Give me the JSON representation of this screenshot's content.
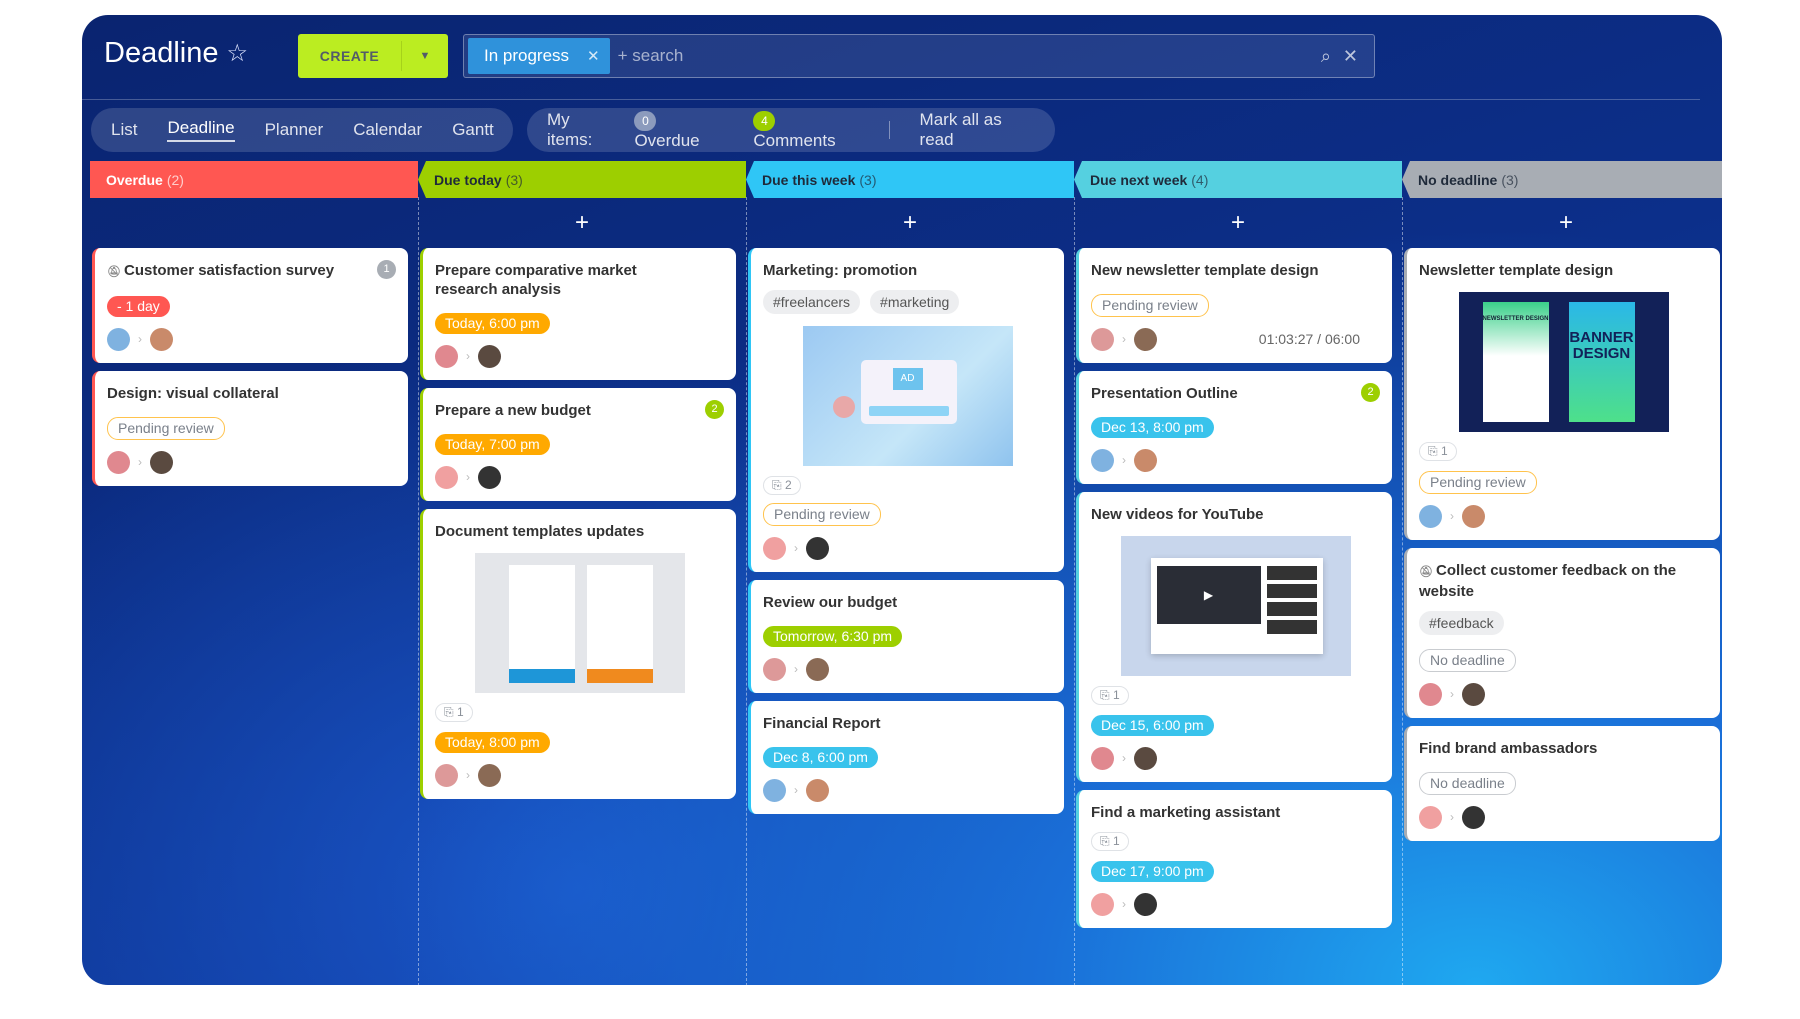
{
  "header": {
    "title": "Deadline",
    "create_label": "CREATE",
    "filter_chip": "In progress",
    "search_placeholder": "+ search"
  },
  "view_tabs": [
    "List",
    "Deadline",
    "Planner",
    "Calendar",
    "Gantt"
  ],
  "active_tab": "Deadline",
  "my_items": {
    "label": "My items:",
    "overdue_count": "0",
    "overdue_label": "Overdue",
    "comments_count": "4",
    "comments_label": "Comments",
    "mark_read": "Mark all as read"
  },
  "colors": {
    "overdue": "#ff5752",
    "today": "#9dcf00",
    "week": "#2fc6f6",
    "next_week": "#55d0e0",
    "none": "#a8adb4",
    "orange": "#ffa900",
    "green": "#9dcf00",
    "blue": "#2fc6f6"
  },
  "columns": [
    {
      "title": "Overdue",
      "count": "(2)",
      "color": "#ff5752",
      "cards": [
        {
          "title": "Customer satisfaction survey",
          "muted": true,
          "counter": "1",
          "counter_color": "#a8adb4",
          "badge": {
            "text": "- 1 day",
            "kind": "red"
          }
        },
        {
          "title": "Design: visual collateral",
          "badge": {
            "text": "Pending review",
            "kind": "pending"
          }
        }
      ]
    },
    {
      "title": "Due today",
      "count": "(3)",
      "color": "#9dcf00",
      "cards": [
        {
          "title": "Prepare comparative market research analysis",
          "badge": {
            "text": "Today, 6:00 pm",
            "kind": "orange"
          }
        },
        {
          "title": "Prepare a new budget",
          "counter": "2",
          "counter_color": "#9dcf00",
          "badge": {
            "text": "Today, 7:00 pm",
            "kind": "orange"
          }
        },
        {
          "title": "Document templates updates",
          "image": "documents",
          "attachments": "1",
          "badge": {
            "text": "Today, 8:00 pm",
            "kind": "orange"
          }
        }
      ]
    },
    {
      "title": "Due this week",
      "count": "(3)",
      "color": "#2fc6f6",
      "cards": [
        {
          "title": "Marketing: promotion",
          "tags": [
            "#freelancers",
            "#marketing"
          ],
          "image": "ad",
          "attachments": "2",
          "badge": {
            "text": "Pending review",
            "kind": "pending"
          }
        },
        {
          "title": "Review our budget",
          "badge": {
            "text": "Tomorrow, 6:30 pm",
            "kind": "green"
          }
        },
        {
          "title": "Financial Report",
          "badge": {
            "text": "Dec 8, 6:00 pm",
            "kind": "blue"
          }
        }
      ]
    },
    {
      "title": "Due next week",
      "count": "(4)",
      "color": "#55d0e0",
      "cards": [
        {
          "title": "New newsletter template design",
          "badge": {
            "text": "Pending review",
            "kind": "pending"
          },
          "timer": "01:03:27 / 06:00"
        },
        {
          "title": "Presentation Outline",
          "counter": "2",
          "counter_color": "#9dcf00",
          "badge": {
            "text": "Dec 13, 8:00 pm",
            "kind": "blue"
          }
        },
        {
          "title": "New videos for YouTube",
          "image": "video",
          "attachments": "1",
          "badge": {
            "text": "Dec 15, 6:00 pm",
            "kind": "blue"
          }
        },
        {
          "title": "Find a marketing assistant",
          "attachments": "1",
          "badge": {
            "text": "Dec 17, 9:00 pm",
            "kind": "blue"
          }
        }
      ]
    },
    {
      "title": "No deadline",
      "count": "(3)",
      "color": "#a8adb4",
      "cards": [
        {
          "title": "Newsletter template design",
          "image": "newsletter",
          "image_text": [
            "NEWSLETTER DESIGN",
            "BANNER DESIGN"
          ],
          "attachments": "1",
          "badge": {
            "text": "Pending review",
            "kind": "pending"
          }
        },
        {
          "title": "Collect customer feedback on the website",
          "muted": true,
          "tags": [
            "#feedback"
          ],
          "badge": {
            "text": "No deadline",
            "kind": "none"
          }
        },
        {
          "title": "Find brand ambassadors",
          "badge": {
            "text": "No deadline",
            "kind": "none"
          }
        }
      ]
    }
  ]
}
